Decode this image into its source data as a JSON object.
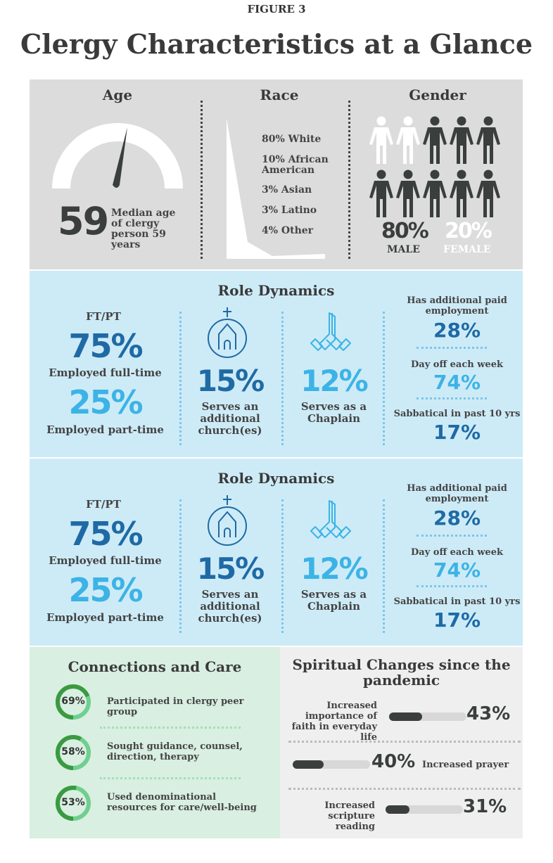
{
  "figure_label": "FIGURE 3",
  "title": "Clergy Characteristics at a Glance",
  "age": {
    "heading": "Age",
    "value": "59",
    "description": "Median age of clergy person 59 years",
    "gauge_fraction": 0.59
  },
  "race": {
    "heading": "Race",
    "items": [
      {
        "label": "80% White",
        "value": 80
      },
      {
        "label": "10% African American",
        "value": 10
      },
      {
        "label": "3% Asian",
        "value": 3
      },
      {
        "label": "3% Latino",
        "value": 3
      },
      {
        "label": "4% Other",
        "value": 4
      }
    ]
  },
  "gender": {
    "heading": "Gender",
    "male_pct": "80%",
    "male_label": "MALE",
    "female_pct": "20%",
    "female_label": "FEMALE",
    "icons_female": 2,
    "icons_male": 8
  },
  "role_dynamics": [
    {
      "heading": "Role Dynamics",
      "ftpt_label": "FT/PT",
      "ft_pct": "75%",
      "ft_label": "Employed full-time",
      "pt_pct": "25%",
      "pt_label": "Employed part-time",
      "church_pct": "15%",
      "church_label": "Serves an additional church(es)",
      "chaplain_pct": "12%",
      "chaplain_label": "Serves as a Chaplain",
      "employment_label": "Has additional paid employment",
      "employment_pct": "28%",
      "dayoff_label": "Day off each week",
      "dayoff_pct": "74%",
      "sabbatical_label": "Sabbatical in past 10 yrs",
      "sabbatical_pct": "17%"
    },
    {
      "heading": "Role Dynamics",
      "ftpt_label": "FT/PT",
      "ft_pct": "75%",
      "ft_label": "Employed full-time",
      "pt_pct": "25%",
      "pt_label": "Employed part-time",
      "church_pct": "15%",
      "church_label": "Serves an additional church(es)",
      "chaplain_pct": "12%",
      "chaplain_label": "Serves as a Chaplain",
      "employment_label": "Has additional paid employment",
      "employment_pct": "28%",
      "dayoff_label": "Day off each week",
      "dayoff_pct": "74%",
      "sabbatical_label": "Sabbatical in past 10 yrs",
      "sabbatical_pct": "17%"
    }
  ],
  "connections": {
    "heading": "Connections and Care",
    "items": [
      {
        "pct": "69%",
        "value": 69,
        "label": "Participated in clergy peer group"
      },
      {
        "pct": "58%",
        "value": 58,
        "label": "Sought guidance, counsel, direction, therapy"
      },
      {
        "pct": "53%",
        "value": 53,
        "label": "Used denominational resources for care/well-being"
      }
    ]
  },
  "spiritual": {
    "heading": "Spiritual Changes since the pandemic",
    "items": [
      {
        "label": "Increased importance of faith in everyday life",
        "pct": "43%",
        "value": 43
      },
      {
        "label": "Increased prayer",
        "pct": "40%",
        "value": 40
      },
      {
        "label": "Increased scripture reading",
        "pct": "31%",
        "value": 31
      }
    ]
  },
  "colors": {
    "dark_blue": "#1f6aa5",
    "light_blue": "#3cb3e6",
    "ring_dark": "#3a9a3f",
    "ring_light": "#6fcf8f",
    "dark": "#3a3f3e"
  }
}
